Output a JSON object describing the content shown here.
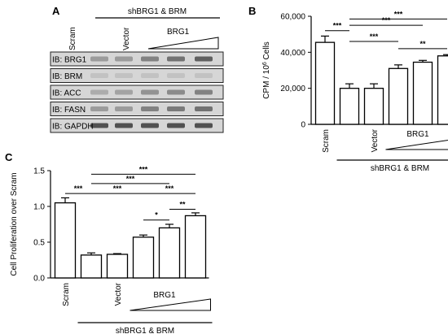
{
  "panels": {
    "a": {
      "letter": "A",
      "group_label": "shBRG1 & BRM",
      "lanes": [
        "Scram",
        "Vector"
      ],
      "ramp_label": "BRG1",
      "blots": [
        {
          "label": "IB: BRG1",
          "intensity": [
            0.75,
            0.35,
            0.35,
            0.5,
            0.6,
            0.7
          ]
        },
        {
          "label": "IB: BRM",
          "intensity": [
            0.8,
            0.12,
            0.12,
            0.12,
            0.12,
            0.12
          ]
        },
        {
          "label": "IB: ACC",
          "intensity": [
            0.5,
            0.25,
            0.3,
            0.4,
            0.45,
            0.5
          ]
        },
        {
          "label": "IB: FASN",
          "intensity": [
            0.6,
            0.35,
            0.35,
            0.5,
            0.55,
            0.6
          ]
        },
        {
          "label": "IB: GAPDH",
          "intensity": [
            0.8,
            0.8,
            0.8,
            0.8,
            0.8,
            0.8
          ]
        }
      ]
    },
    "b": {
      "letter": "B"
    },
    "c": {
      "letter": "C"
    }
  },
  "chart_data": [
    {
      "id": "b",
      "type": "bar",
      "categories": [
        "Scram",
        "",
        "Vector",
        "",
        "",
        ""
      ],
      "values": [
        45500,
        20000,
        20000,
        31000,
        34500,
        38000
      ],
      "errors": [
        3500,
        2500,
        2500,
        2000,
        1000,
        700
      ],
      "ylabel": "CPM / 10",
      "ylabel_sup": "6",
      "ylabel_suffix": " Cells",
      "ylim": [
        0,
        60000
      ],
      "yticks": [
        "0",
        "20,000",
        "40,000",
        "60,000"
      ],
      "ytick_values": [
        0,
        20000,
        40000,
        60000
      ],
      "ramp_label": "BRG1",
      "group_label": "shBRG1 & BRM",
      "significance": [
        {
          "from": 0,
          "to": 1,
          "label": "***",
          "y": 52000
        },
        {
          "from": 1,
          "to": 3,
          "label": "***",
          "y": 46000
        },
        {
          "from": 1,
          "to": 4,
          "label": "***",
          "y": 55000
        },
        {
          "from": 1,
          "to": 5,
          "label": "***",
          "y": 58500
        },
        {
          "from": 3,
          "to": 5,
          "label": "**",
          "y": 42000
        }
      ]
    },
    {
      "id": "c",
      "type": "bar",
      "categories": [
        "Scram",
        "",
        "Vector",
        "",
        "",
        ""
      ],
      "values": [
        1.05,
        0.32,
        0.33,
        0.57,
        0.7,
        0.87
      ],
      "errors": [
        0.07,
        0.03,
        0.01,
        0.03,
        0.05,
        0.04
      ],
      "ylabel": "Cell Proliferation over Scram",
      "ylim": [
        0,
        1.5
      ],
      "yticks": [
        "0.0",
        "0.5",
        "1.0",
        "1.5"
      ],
      "ytick_values": [
        0,
        0.5,
        1.0,
        1.5
      ],
      "ramp_label": "BRG1",
      "group_label": "shBRG1 & BRM",
      "significance": [
        {
          "from": 0,
          "to": 1,
          "label": "***",
          "y": 1.18
        },
        {
          "from": 1,
          "to": 3,
          "label": "***",
          "y": 1.18
        },
        {
          "from": 1,
          "to": 4,
          "label": "***",
          "y": 1.32
        },
        {
          "from": 1,
          "to": 5,
          "label": "***",
          "y": 1.45
        },
        {
          "from": 3,
          "to": 5,
          "label": "***",
          "y": 1.18
        },
        {
          "from": 3,
          "to": 4,
          "label": "*",
          "y": 0.81
        },
        {
          "from": 4,
          "to": 5,
          "label": "**",
          "y": 0.96
        }
      ]
    }
  ]
}
